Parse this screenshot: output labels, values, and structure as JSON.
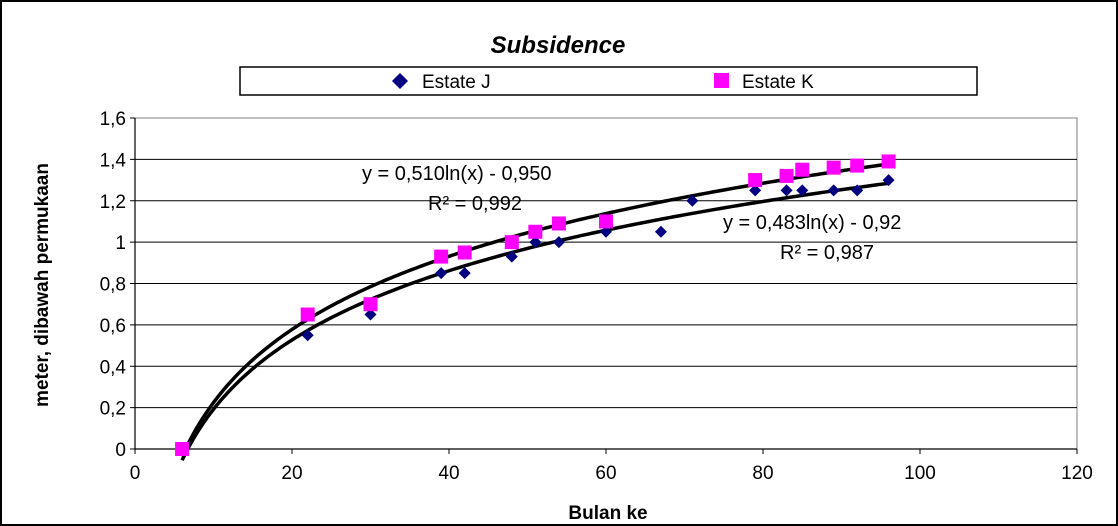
{
  "chart_data": {
    "type": "scatter",
    "title": "Subsidence",
    "xlabel": "Bulan ke",
    "ylabel": "meter, dibawah permukaan",
    "xlim": [
      0,
      120
    ],
    "ylim": [
      0,
      1.6
    ],
    "x_ticks": [
      "0",
      "20",
      "40",
      "60",
      "80",
      "100",
      "120"
    ],
    "y_ticks": [
      "0",
      "0,2",
      "0,4",
      "0,6",
      "0,8",
      "1",
      "1,2",
      "1,4",
      "1,6"
    ],
    "grid": "horizontal",
    "legend_position": "top",
    "series": [
      {
        "name": "Estate J",
        "marker": "diamond",
        "color": "#000080",
        "x": [
          6,
          22,
          30,
          39,
          42,
          48,
          51,
          54,
          60,
          67,
          71,
          79,
          83,
          85,
          89,
          92,
          96
        ],
        "y": [
          0,
          0.55,
          0.65,
          0.85,
          0.85,
          0.93,
          1.0,
          1.0,
          1.05,
          1.05,
          1.2,
          1.25,
          1.25,
          1.25,
          1.25,
          1.25,
          1.3
        ],
        "trendline": {
          "type": "log",
          "a": 0.483,
          "b": -0.92,
          "equation": "y = 0,483ln(x) - 0,92",
          "r2": "R² = 0,987"
        }
      },
      {
        "name": "Estate K",
        "marker": "square",
        "color": "#FF00FF",
        "x": [
          6,
          22,
          30,
          39,
          42,
          48,
          51,
          54,
          60,
          79,
          83,
          85,
          89,
          92,
          96
        ],
        "y": [
          0,
          0.65,
          0.7,
          0.93,
          0.95,
          1.0,
          1.05,
          1.09,
          1.1,
          1.3,
          1.32,
          1.35,
          1.36,
          1.37,
          1.39
        ],
        "trendline": {
          "type": "log",
          "a": 0.51,
          "b": -0.95,
          "equation": "y = 0,510ln(x) - 0,950",
          "r2": "R² = 0,992"
        }
      }
    ],
    "trendline_color": "#000000"
  }
}
